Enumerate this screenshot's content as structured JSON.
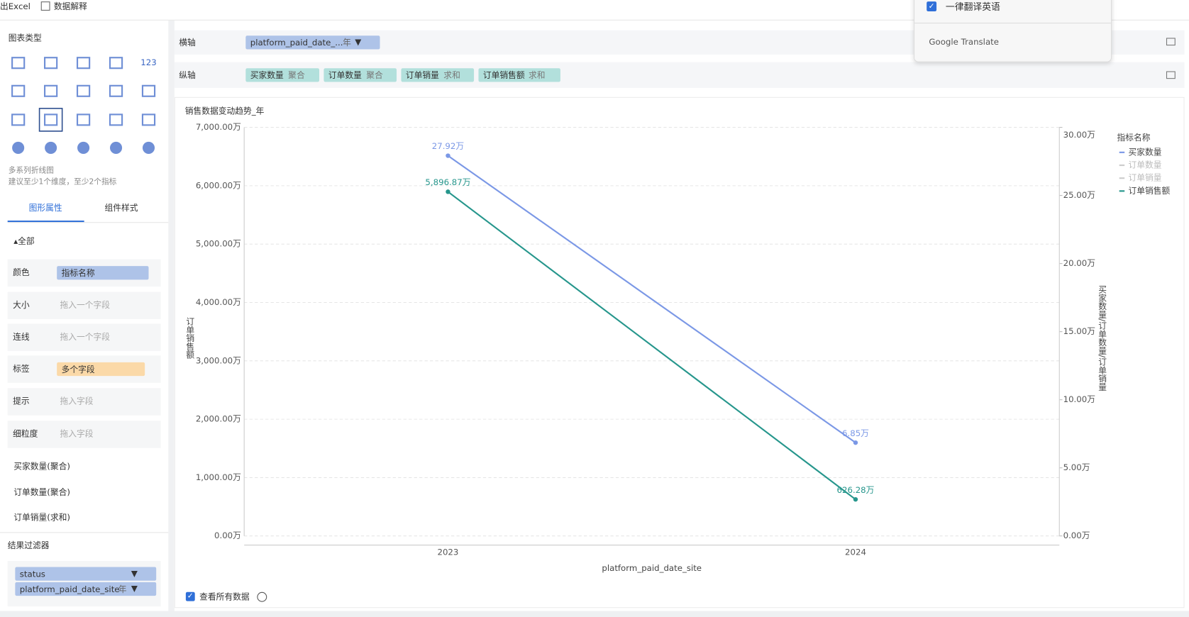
{
  "toolbar": {
    "items": [
      "出Excel",
      "数据解释"
    ]
  },
  "translate_popup": {
    "option": "一律翻译英语",
    "brand": "Google",
    "brand_suffix": "Translate"
  },
  "left_panel": {
    "chart_types_title": "图表类型",
    "icon_text": "123",
    "chart_desc": "多系列折线图",
    "chart_hint": "建议至少1个维度，至少2个指标",
    "tabs": [
      "图形属性",
      "组件样式"
    ],
    "section": "全部",
    "props": [
      {
        "label": "颜色",
        "value": "指标名称"
      },
      {
        "label": "大小",
        "placeholder": "拖入一个字段"
      },
      {
        "label": "连线",
        "placeholder": "拖入一个字段"
      },
      {
        "label": "标签",
        "value": "多个字段"
      },
      {
        "label": "提示",
        "placeholder": "拖入字段"
      },
      {
        "label": "细粒度",
        "placeholder": "拖入字段"
      }
    ],
    "series_sections": [
      "买家数量(聚合)",
      "订单数量(聚合)",
      "订单销量(求和)"
    ],
    "filter_title": "结果过滤器",
    "filters": [
      {
        "name": "status"
      },
      {
        "name": "platform_paid_date_site",
        "suffix": "年"
      }
    ]
  },
  "shelves": {
    "x": {
      "label": "横轴",
      "field": "platform_paid_date_...",
      "suffix": "年"
    },
    "y": {
      "label": "纵轴",
      "pills": [
        {
          "name": "买家数量",
          "agg": "聚合"
        },
        {
          "name": "订单数量",
          "agg": "聚合"
        },
        {
          "name": "订单销量",
          "agg": "求和"
        },
        {
          "name": "订单销售额",
          "agg": "求和"
        }
      ]
    }
  },
  "chart_data": {
    "type": "line",
    "title": "销售数据变动趋势_年",
    "categories": [
      "2023",
      "2024"
    ],
    "x_label": "platform_paid_date_site",
    "y_label": "订单销售额",
    "y2_label": "买家数量/订单数量/订单销量",
    "ylim": [
      0,
      7000
    ],
    "yticks": [
      {
        "value": 0,
        "label": "0.00万"
      },
      {
        "value": 1000,
        "label": "1,000.00万"
      },
      {
        "value": 2000,
        "label": "2,000.00万"
      },
      {
        "value": 3000,
        "label": "3,000.00万"
      },
      {
        "value": 4000,
        "label": "4,000.00万"
      },
      {
        "value": 5000,
        "label": "5,000.00万"
      },
      {
        "value": 6000,
        "label": "6,000.00万"
      },
      {
        "value": 7000,
        "label": "7,000.00万"
      }
    ],
    "y2lim": [
      0,
      30
    ],
    "y2ticks": [
      {
        "value": 0,
        "label": "0.00万"
      },
      {
        "value": 5,
        "label": "5.00万"
      },
      {
        "value": 10,
        "label": "10.00万"
      },
      {
        "value": 15,
        "label": "15.00万"
      },
      {
        "value": 20,
        "label": "20.00万"
      },
      {
        "value": 25,
        "label": "25.00万"
      },
      {
        "value": 30,
        "label": "30.00万"
      }
    ],
    "grid": true,
    "series": [
      {
        "name": "买家数量",
        "color": "#7b98e6",
        "axis": "y2",
        "values": [
          27.92,
          6.85
        ],
        "value_labels": [
          "27.92万",
          "6.85万"
        ]
      },
      {
        "name": "订单销售额",
        "color": "#26968c",
        "axis": "y",
        "values": [
          5896.87,
          626.28
        ],
        "value_labels": [
          "5,896.87万",
          "626.28万"
        ]
      }
    ],
    "legend": {
      "title": "指标名称",
      "position": "right",
      "items": [
        {
          "name": "买家数量",
          "color": "#7b98e6"
        },
        {
          "name": "订单数量",
          "color": "#cccccc"
        },
        {
          "name": "订单销量",
          "color": "#cccccc"
        },
        {
          "name": "订单销售额",
          "color": "#26968c"
        }
      ]
    }
  },
  "footer": {
    "show_all": "查看所有数据"
  }
}
